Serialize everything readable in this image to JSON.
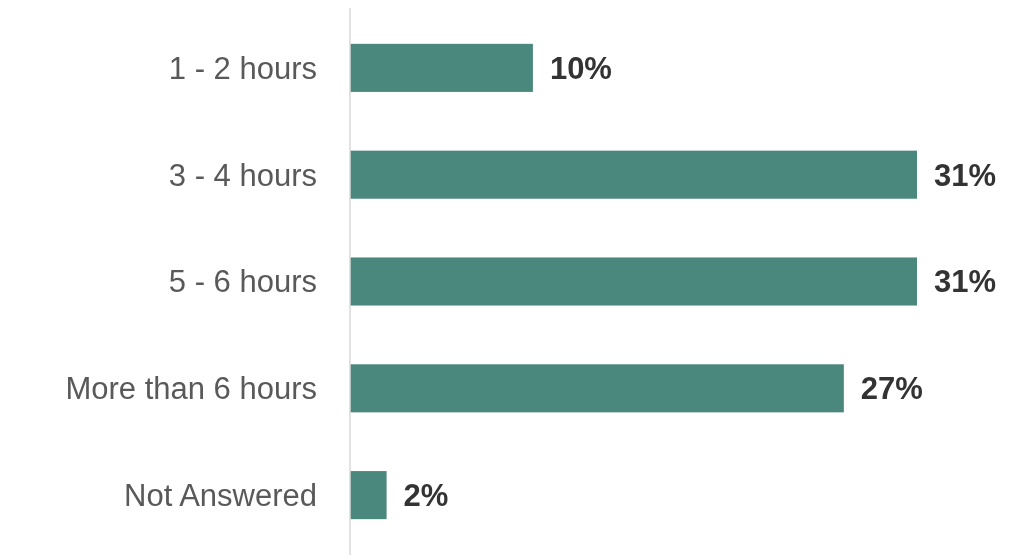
{
  "chart_data": {
    "type": "bar",
    "orientation": "horizontal",
    "categories": [
      "1 - 2 hours",
      "3 - 4 hours",
      "5 - 6 hours",
      "More than 6 hours",
      "Not Answered"
    ],
    "values": [
      10,
      31,
      31,
      27,
      2
    ],
    "value_labels": [
      "10%",
      "31%",
      "31%",
      "27%",
      "2%"
    ],
    "color": "#4a877c"
  }
}
